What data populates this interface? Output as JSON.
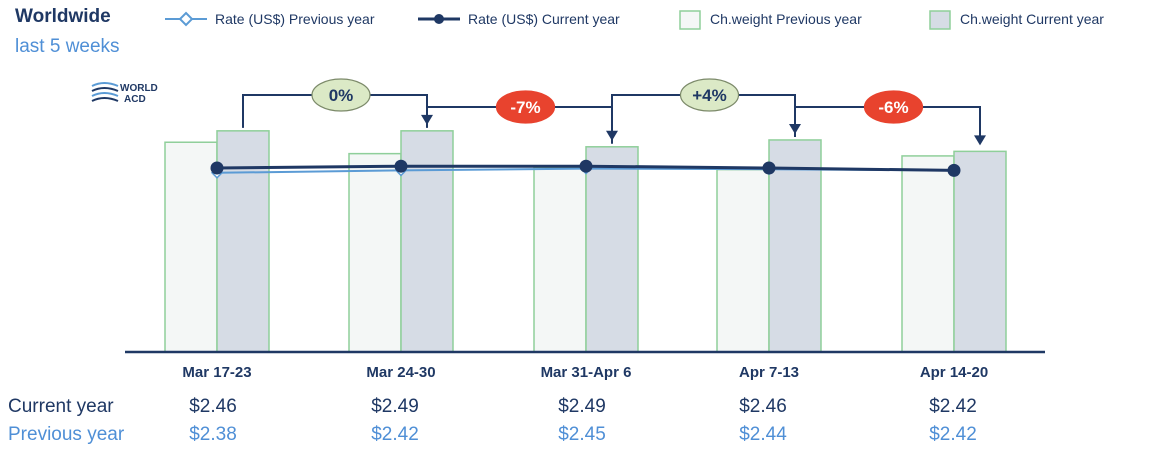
{
  "title": "Worldwide",
  "subtitle": "last 5 weeks",
  "logo": {
    "line1": "WORLD",
    "line2": "ACD"
  },
  "colors": {
    "rate_current": "#1f3864",
    "rate_previous": "#5b9bd5",
    "weight_previous_fill": "#f4f7f6",
    "weight_current_fill": "#d6dce5",
    "bar_stroke": "#8fcf9a",
    "badge_neutral": "#dbe9c6",
    "badge_negative": "#e8432e"
  },
  "chart_data": {
    "type": "bar",
    "categories": [
      "Mar 17-23",
      "Mar 24-30",
      "Mar 31-Apr 6",
      "Apr 7-13",
      "Apr 14-20"
    ],
    "series": [
      {
        "name": "Ch.weight Previous year",
        "kind": "bar",
        "values": [
          0.92,
          0.87,
          0.81,
          0.8,
          0.86
        ]
      },
      {
        "name": "Ch.weight Current year",
        "kind": "bar",
        "values": [
          0.97,
          0.97,
          0.9,
          0.93,
          0.88
        ]
      },
      {
        "name": "Rate (US$) Previous year",
        "kind": "line",
        "marker": "diamond-open",
        "values": [
          2.38,
          2.42,
          2.45,
          2.44,
          2.42
        ]
      },
      {
        "name": "Rate (US$) Current year",
        "kind": "line",
        "marker": "circle-filled",
        "values": [
          2.46,
          2.49,
          2.49,
          2.46,
          2.42
        ]
      }
    ],
    "changes": [
      {
        "label": "0%",
        "style": "neutral"
      },
      {
        "label": "-7%",
        "style": "negative"
      },
      {
        "label": "+4%",
        "style": "neutral"
      },
      {
        "label": "-6%",
        "style": "negative"
      }
    ],
    "table": {
      "rows": [
        {
          "label": "Current year",
          "values": [
            "$2.46",
            "$2.49",
            "$2.49",
            "$2.46",
            "$2.42"
          ]
        },
        {
          "label": "Previous year",
          "values": [
            "$2.38",
            "$2.42",
            "$2.45",
            "$2.44",
            "$2.42"
          ]
        }
      ]
    },
    "legend_position": "top"
  }
}
